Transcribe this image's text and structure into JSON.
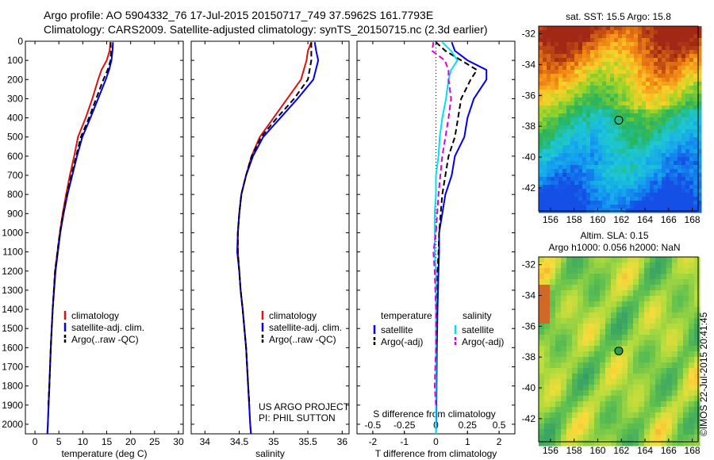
{
  "header": {
    "line1": "Argo profile: AO 5904332_76 17-Jul-2015 20150717_749 37.5962S 161.7793E",
    "line2": "Climatology: CARS2009. Satellite-adjusted climatology: synTS_20150715.nc (2.3d earlier)"
  },
  "colors": {
    "climatology": "#dd1111",
    "satellite": "#0000ee",
    "argo": "#000000",
    "sal_satellite": "#00e0ee",
    "sal_argo": "#dd00dd"
  },
  "chart_data": [
    {
      "type": "line",
      "xlabel": "temperature (deg C)",
      "ylabel": "",
      "xlim": [
        -2,
        31
      ],
      "ylim": [
        2050,
        0
      ],
      "xticks": [
        0,
        5,
        10,
        15,
        20,
        25,
        30
      ],
      "yticks": [
        0,
        100,
        200,
        300,
        400,
        500,
        600,
        700,
        800,
        900,
        1000,
        1100,
        1200,
        1300,
        1400,
        1500,
        1600,
        1700,
        1800,
        1900,
        2000
      ],
      "legend": {
        "location": "lower-center",
        "entries": [
          "climatology",
          "satellite-adj. clim.",
          "Argo(..raw -QC)"
        ]
      },
      "series": [
        {
          "name": "climatology",
          "style": "solid",
          "color": "#dd1111",
          "depth": [
            5,
            50,
            100,
            150,
            200,
            300,
            400,
            500,
            600,
            700,
            800,
            900,
            1000,
            1200,
            1400,
            1600,
            1800,
            2000,
            2050
          ],
          "values": [
            15.8,
            15.6,
            15.0,
            13.9,
            13.2,
            12.0,
            10.6,
            9.0,
            8.2,
            7.3,
            6.5,
            5.8,
            5.2,
            4.2,
            3.7,
            3.3,
            3.0,
            2.7,
            2.6
          ]
        },
        {
          "name": "satellite-adj. clim.",
          "style": "solid",
          "color": "#0000ee",
          "depth": [
            5,
            50,
            100,
            150,
            200,
            300,
            400,
            500,
            600,
            700,
            800,
            900,
            1000,
            1200,
            1400,
            1600,
            1800,
            2000,
            2050
          ],
          "values": [
            16.3,
            16.2,
            16.0,
            15.5,
            14.8,
            13.2,
            11.6,
            9.9,
            8.8,
            7.8,
            6.8,
            6.0,
            5.3,
            4.3,
            3.7,
            3.3,
            3.0,
            2.7,
            2.6
          ]
        },
        {
          "name": "Argo(..raw -QC)",
          "style": "dashed",
          "color": "#000000",
          "depth": [
            5,
            50,
            100,
            150,
            200,
            300,
            400,
            500,
            600,
            700,
            800,
            900,
            1000,
            1200,
            1400,
            1600,
            1800,
            1900
          ],
          "values": [
            15.8,
            15.9,
            15.8,
            15.2,
            14.3,
            12.8,
            11.3,
            9.6,
            8.6,
            7.6,
            6.7,
            5.9,
            5.2,
            4.2,
            3.7,
            3.3,
            3.0,
            2.8
          ]
        }
      ]
    },
    {
      "type": "line",
      "xlabel": "salinity",
      "ylabel": "",
      "xlim": [
        33.8,
        36.1
      ],
      "ylim": [
        2050,
        0
      ],
      "xticks": [
        34,
        34.5,
        35,
        35.5,
        36
      ],
      "legend": {
        "location": "lower-center",
        "entries": [
          "climatology",
          "satellite-adj. clim.",
          "Argo(..raw -QC)"
        ]
      },
      "annotations": [
        "US ARGO PROJECT",
        "PI: PHIL SUTTON"
      ],
      "series": [
        {
          "name": "climatology",
          "style": "solid",
          "color": "#dd1111",
          "depth": [
            5,
            50,
            100,
            200,
            300,
            400,
            500,
            600,
            700,
            800,
            900,
            1000,
            1100,
            1200,
            1300,
            1400,
            1600,
            1800,
            2000,
            2050
          ],
          "values": [
            35.55,
            35.5,
            35.48,
            35.4,
            35.2,
            35.0,
            34.8,
            34.68,
            34.6,
            34.53,
            34.5,
            34.48,
            34.48,
            34.5,
            34.52,
            34.55,
            34.6,
            34.63,
            34.66,
            34.67
          ]
        },
        {
          "name": "satellite-adj. clim.",
          "style": "solid",
          "color": "#0000ee",
          "depth": [
            5,
            50,
            100,
            200,
            300,
            400,
            500,
            600,
            700,
            800,
            900,
            1000,
            1100,
            1200,
            1300,
            1400,
            1600,
            1800,
            2000,
            2050
          ],
          "values": [
            35.6,
            35.62,
            35.65,
            35.58,
            35.35,
            35.1,
            34.85,
            34.7,
            34.6,
            34.53,
            34.5,
            34.48,
            34.47,
            34.5,
            34.52,
            34.55,
            34.6,
            34.63,
            34.66,
            34.67
          ]
        },
        {
          "name": "Argo(..raw -QC)",
          "style": "dashed",
          "color": "#000000",
          "depth": [
            5,
            50,
            100,
            200,
            300,
            400,
            500,
            600,
            700,
            800,
            900,
            1000,
            1100,
            1200,
            1300,
            1400,
            1600,
            1800,
            1900
          ],
          "values": [
            35.55,
            35.55,
            35.55,
            35.5,
            35.3,
            35.05,
            34.82,
            34.68,
            34.6,
            34.53,
            34.5,
            34.48,
            34.48,
            34.5,
            34.52,
            34.55,
            34.6,
            34.63,
            34.65
          ]
        }
      ]
    },
    {
      "type": "line",
      "xlabel": "T difference from climatology",
      "xlabel2": "S difference from climatology",
      "xlim": [
        -2.5,
        2.5
      ],
      "xlim2": [
        -0.625,
        0.625
      ],
      "ylim": [
        2050,
        0
      ],
      "xticks": [
        -2,
        -1,
        0,
        1,
        2
      ],
      "xtick_labels": [
        "-2",
        "-1",
        "0",
        "1",
        "2"
      ],
      "xticks2": [
        -0.5,
        -0.25,
        0,
        0.25,
        0.5
      ],
      "xtick_labels2": [
        "-0.5",
        "-0.25",
        "0",
        "0.25",
        "0.5"
      ],
      "legend": {
        "location": "lower-center",
        "col1_header": "temperature",
        "col2_header": "salinity",
        "col1": [
          "satellite",
          "Argo(-adj)"
        ],
        "col2": [
          "satellite",
          "Argo(-adj)"
        ]
      },
      "series": [
        {
          "name": "satellite",
          "group": "temperature",
          "style": "solid",
          "color": "#0000ee",
          "depth": [
            5,
            50,
            100,
            150,
            200,
            300,
            400,
            500,
            600,
            700,
            800,
            900,
            1000,
            1100,
            1200,
            1400,
            1600,
            1800,
            2000,
            2050
          ],
          "values": [
            0.5,
            0.6,
            1.0,
            1.6,
            1.6,
            1.2,
            1.0,
            0.9,
            0.6,
            0.5,
            0.3,
            0.2,
            0.1,
            0.1,
            0.08,
            0.05,
            0.03,
            0.02,
            0.01,
            0.0
          ]
        },
        {
          "name": "Argo(-adj)",
          "group": "temperature",
          "style": "dashed",
          "color": "#000000",
          "depth": [
            5,
            50,
            100,
            150,
            200,
            300,
            400,
            500,
            600,
            700,
            800,
            900,
            1000,
            1100,
            1200,
            1400,
            1600,
            1800,
            1900
          ],
          "values": [
            0.0,
            0.3,
            0.8,
            1.3,
            1.1,
            0.8,
            0.7,
            0.6,
            0.4,
            0.3,
            0.2,
            0.15,
            0.1,
            0.08,
            0.05,
            0.03,
            0.02,
            0.01,
            0.01
          ]
        },
        {
          "name": "satellite",
          "group": "salinity",
          "style": "solid",
          "color": "#00e0ee",
          "depth": [
            5,
            50,
            100,
            150,
            200,
            300,
            400,
            500,
            600,
            700,
            800,
            900,
            1000,
            1100,
            1200,
            1400,
            1600,
            1800,
            2000,
            2050
          ],
          "values": [
            0.05,
            0.12,
            0.17,
            0.12,
            0.1,
            0.08,
            0.05,
            0.03,
            0.02,
            0.0,
            0.0,
            -0.01,
            -0.01,
            -0.01,
            0.0,
            0.0,
            0.0,
            0.0,
            0.0,
            0.0
          ]
        },
        {
          "name": "Argo(-adj)",
          "group": "salinity",
          "style": "dashed",
          "color": "#dd00dd",
          "depth": [
            5,
            50,
            100,
            150,
            200,
            300,
            400,
            600,
            800,
            1000,
            1100,
            1200,
            1400,
            1600,
            1800,
            1900
          ],
          "values": [
            -0.02,
            -0.03,
            0.07,
            0.1,
            0.1,
            0.12,
            0.1,
            0.05,
            0.02,
            0.0,
            -0.02,
            -0.01,
            0.0,
            0.0,
            -0.01,
            0.0
          ]
        }
      ]
    }
  ],
  "maps": [
    {
      "title": "sat. SST: 15.5 Argo: 15.8",
      "type": "heatmap",
      "xlim": [
        155,
        168.5
      ],
      "ylim": [
        -43.5,
        -31.5
      ],
      "xticks": [
        156,
        158,
        160,
        162,
        164,
        166,
        168
      ],
      "yticks": [
        -32,
        -34,
        -36,
        -38,
        -40,
        -42
      ],
      "marker": {
        "lon": 161.78,
        "lat": -37.6
      }
    },
    {
      "title": "Altim. SLA: 0.15",
      "title2": "Argo h1000: 0.056 h2000: NaN",
      "type": "heatmap",
      "xlim": [
        155,
        168.5
      ],
      "ylim": [
        -43.5,
        -31.5
      ],
      "xticks": [
        156,
        158,
        160,
        162,
        164,
        166,
        168
      ],
      "yticks": [
        -32,
        -34,
        -36,
        -38,
        -40,
        -42
      ],
      "marker": {
        "lon": 161.78,
        "lat": -37.6
      }
    }
  ],
  "credit": "©IMOS 22-Jul-2015 20:41:45"
}
